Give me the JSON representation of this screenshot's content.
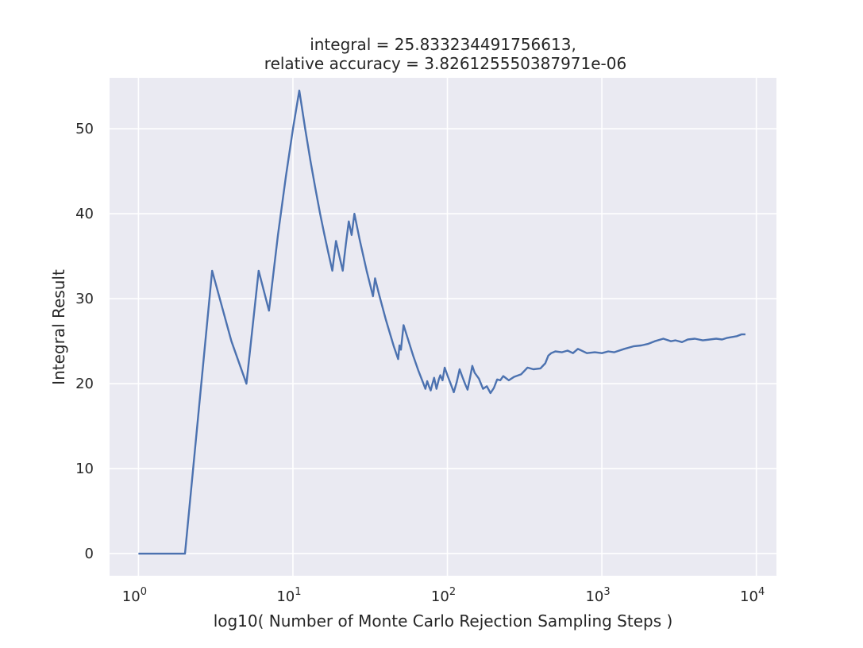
{
  "chart_data": {
    "type": "line",
    "title_line1": "integral = 25.833234491756613,",
    "title_line2": "relative accuracy = 3.826125550387971e-06",
    "xlabel": "log10( Number of Monte Carlo Rejection Sampling Steps )",
    "ylabel": "Integral Result",
    "x_scale": "log",
    "xlim": [
      0.65,
      13500
    ],
    "ylim": [
      -2.6,
      56
    ],
    "x_ticks": [
      {
        "value": 1,
        "base": "10",
        "exp": "0"
      },
      {
        "value": 10,
        "base": "10",
        "exp": "1"
      },
      {
        "value": 100,
        "base": "10",
        "exp": "2"
      },
      {
        "value": 1000,
        "base": "10",
        "exp": "3"
      },
      {
        "value": 10000,
        "base": "10",
        "exp": "4"
      }
    ],
    "y_ticks": [
      0,
      10,
      20,
      30,
      40,
      50
    ],
    "grid": true,
    "colors": {
      "background": "#eaeaf2",
      "grid": "#ffffff",
      "line": "#4c72b0"
    },
    "series": [
      {
        "x": [
          1,
          2,
          3,
          4,
          5,
          6,
          7,
          8,
          9,
          10,
          11,
          12,
          13,
          14,
          15,
          16,
          17,
          18,
          19,
          20,
          21,
          22,
          23,
          24,
          25,
          27,
          30,
          33,
          34,
          36,
          40,
          45,
          48,
          49,
          50,
          52,
          55,
          60,
          65,
          70,
          72,
          74,
          76,
          78,
          80,
          82,
          85,
          88,
          90,
          93,
          96,
          100,
          105,
          110,
          115,
          120,
          125,
          130,
          135,
          140,
          145,
          150,
          160,
          170,
          180,
          190,
          200,
          210,
          220,
          230,
          250,
          270,
          300,
          330,
          360,
          400,
          430,
          450,
          470,
          500,
          550,
          600,
          650,
          700,
          800,
          900,
          1000,
          1100,
          1200,
          1400,
          1600,
          1800,
          2000,
          2200,
          2500,
          2800,
          3000,
          3300,
          3600,
          4000,
          4500,
          5000,
          5500,
          6000,
          6500,
          7000,
          7500,
          8000,
          8500
        ],
        "y": [
          0,
          0,
          33.3,
          25,
          20,
          33.3,
          28.6,
          37.5,
          44.4,
          50,
          54.5,
          50,
          46.2,
          42.9,
          40,
          37.5,
          35.3,
          33.3,
          36.8,
          35,
          33.3,
          36.4,
          39.1,
          37.5,
          40,
          37,
          33.3,
          30.3,
          32.4,
          30.6,
          27.5,
          24.4,
          22.9,
          24.5,
          24,
          26.9,
          25.5,
          23.3,
          21.5,
          20,
          19.4,
          20.3,
          19.7,
          19.2,
          20,
          20.7,
          19.4,
          20.5,
          21,
          20.4,
          21.9,
          21,
          20,
          19,
          20.2,
          21.7,
          20.8,
          20,
          19.3,
          20.7,
          22.1,
          21.3,
          20.6,
          19.4,
          19.7,
          18.9,
          19.5,
          20.5,
          20.4,
          20.9,
          20.4,
          20.8,
          21.1,
          21.9,
          21.7,
          21.8,
          22.4,
          23.3,
          23.6,
          23.8,
          23.7,
          23.9,
          23.6,
          24.1,
          23.6,
          23.7,
          23.6,
          23.8,
          23.7,
          24.1,
          24.4,
          24.5,
          24.7,
          25.0,
          25.3,
          25.0,
          25.1,
          24.9,
          25.2,
          25.3,
          25.1,
          25.2,
          25.3,
          25.2,
          25.4,
          25.5,
          25.6,
          25.8,
          25.8
        ]
      }
    ]
  }
}
